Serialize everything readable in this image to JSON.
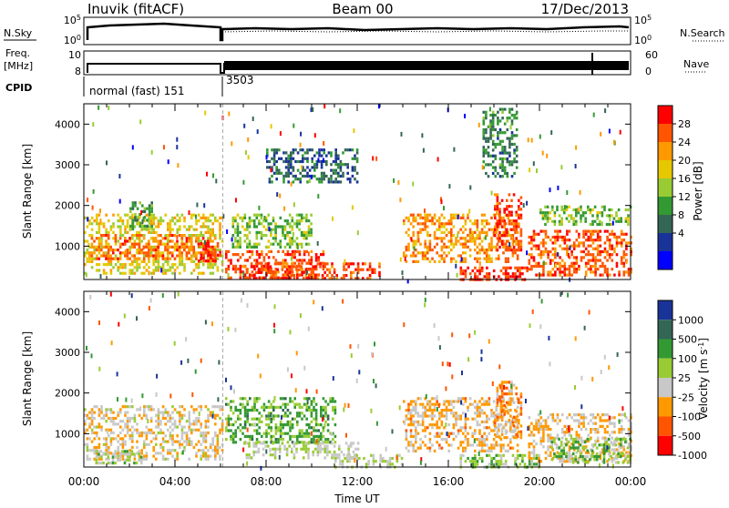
{
  "header": {
    "title": "Inuvik (fitACF)",
    "beam": "Beam 00",
    "date": "17/Dec/2013"
  },
  "status": {
    "nsky_label": "N.Sky",
    "nsearch_label": "N.Search",
    "freq_label_1": "Freq.",
    "freq_label_2": "[MHz]",
    "nave_label": "Nave",
    "cpid_label": "CPID",
    "noise_ticks": [
      "10^5",
      "10^0"
    ],
    "freq_ticks": [
      "10",
      "8"
    ],
    "nave_ticks": [
      "60",
      "0"
    ],
    "cpid_segments": [
      {
        "label": "normal (fast) 151",
        "start_hour": 0.0
      },
      {
        "label": "3503",
        "start_hour": 6.1
      }
    ]
  },
  "chart_data": [
    {
      "type": "heatmap",
      "name": "power",
      "ylabel": "Slant Range [km]",
      "xlabel": "",
      "xlim": [
        0,
        24
      ],
      "ylim": [
        180,
        4500
      ],
      "yticks": [
        1000,
        2000,
        3000,
        4000
      ],
      "colorbar_label": "Power [dB]",
      "colorbar_ticks": [
        "28",
        "24",
        "20",
        "16",
        "12",
        "8",
        "4"
      ],
      "colorbar_colors": [
        "#ff0000",
        "#ff5500",
        "#ff9900",
        "#e6c800",
        "#99cc33",
        "#339933",
        "#336655",
        "#1a3399",
        "#0000ff"
      ],
      "colorbar_range": [
        0,
        30
      ],
      "regions": [
        {
          "x": [
            0.0,
            6.1
          ],
          "y": [
            300,
            1800
          ],
          "value": 18
        },
        {
          "x": [
            0.2,
            5.8
          ],
          "y": [
            700,
            1300
          ],
          "value": 24
        },
        {
          "x": [
            2.0,
            3.0
          ],
          "y": [
            1400,
            2100
          ],
          "value": 12
        },
        {
          "x": [
            5.0,
            6.0
          ],
          "y": [
            600,
            1100
          ],
          "value": 27
        },
        {
          "x": [
            6.2,
            10.5
          ],
          "y": [
            200,
            900
          ],
          "value": 26
        },
        {
          "x": [
            6.5,
            10.0
          ],
          "y": [
            1000,
            1800
          ],
          "value": 14
        },
        {
          "x": [
            7.0,
            13.0
          ],
          "y": [
            200,
            600
          ],
          "value": 26
        },
        {
          "x": [
            8.0,
            12.0
          ],
          "y": [
            2600,
            3400
          ],
          "value": 8
        },
        {
          "x": [
            14.0,
            19.0
          ],
          "y": [
            600,
            1800
          ],
          "value": 22
        },
        {
          "x": [
            16.5,
            19.5
          ],
          "y": [
            200,
            500
          ],
          "value": 27
        },
        {
          "x": [
            18.0,
            19.2
          ],
          "y": [
            900,
            2300
          ],
          "value": 26
        },
        {
          "x": [
            17.5,
            19.0
          ],
          "y": [
            2700,
            4400
          ],
          "value": 10
        },
        {
          "x": [
            19.5,
            24.0
          ],
          "y": [
            300,
            1400
          ],
          "value": 25
        },
        {
          "x": [
            20.0,
            24.0
          ],
          "y": [
            1500,
            2000
          ],
          "value": 14
        }
      ]
    },
    {
      "type": "heatmap",
      "name": "velocity",
      "ylabel": "Slant Range [km]",
      "xlabel": "Time UT",
      "xlim": [
        0,
        24
      ],
      "ylim": [
        180,
        4500
      ],
      "yticks": [
        1000,
        2000,
        3000,
        4000
      ],
      "xticks": [
        "00:00",
        "04:00",
        "08:00",
        "12:00",
        "16:00",
        "20:00",
        "00:00"
      ],
      "colorbar_label": "Velocity [m s^-1]",
      "colorbar_ticks": [
        "1000",
        "500",
        "100",
        "25",
        "-25",
        "-100",
        "-500",
        "-1000"
      ],
      "colorbar_colors": [
        "#1a3399",
        "#336655",
        "#339933",
        "#99cc33",
        "#c8c8c8",
        "#ff9900",
        "#ff5500",
        "#ff0000"
      ],
      "colorbar_range": [
        -1000,
        1000
      ],
      "regions": [
        {
          "x": [
            0.0,
            6.1
          ],
          "y": [
            400,
            1700
          ],
          "value": -200
        },
        {
          "x": [
            0.5,
            2.5
          ],
          "y": [
            300,
            600
          ],
          "value": 80
        },
        {
          "x": [
            6.2,
            11.0
          ],
          "y": [
            800,
            1900
          ],
          "value": 300
        },
        {
          "x": [
            7.0,
            12.0
          ],
          "y": [
            400,
            800
          ],
          "value": 0
        },
        {
          "x": [
            11.0,
            14.0
          ],
          "y": [
            200,
            500
          ],
          "value": 0
        },
        {
          "x": [
            14.0,
            19.0
          ],
          "y": [
            600,
            1900
          ],
          "value": -300
        },
        {
          "x": [
            16.5,
            20.0
          ],
          "y": [
            200,
            500
          ],
          "value": 200
        },
        {
          "x": [
            18.0,
            19.2
          ],
          "y": [
            900,
            2300
          ],
          "value": -400
        },
        {
          "x": [
            19.5,
            24.0
          ],
          "y": [
            300,
            1500
          ],
          "value": -250
        },
        {
          "x": [
            20.5,
            24.0
          ],
          "y": [
            300,
            900
          ],
          "value": 150
        }
      ]
    }
  ]
}
